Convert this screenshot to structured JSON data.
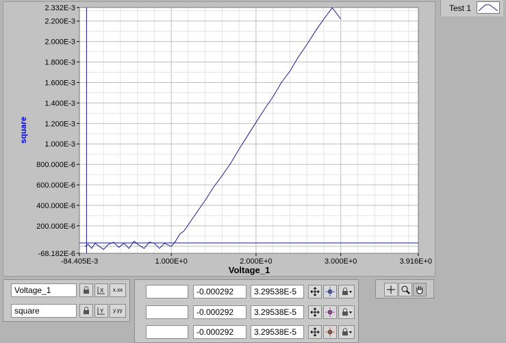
{
  "legend": {
    "plot_name": "Test 1"
  },
  "chart_data": {
    "type": "line",
    "title": "",
    "xlabel": "Voltage_1",
    "ylabel": "square",
    "xlim": [
      -0.084405,
      3.916
    ],
    "ylim": [
      -6.8182e-05,
      0.002332
    ],
    "x_tick_labels": [
      {
        "v": -0.084405,
        "label": "-84.405E-3"
      },
      {
        "v": 1.0,
        "label": "1.000E+0"
      },
      {
        "v": 2.0,
        "label": "2.000E+0"
      },
      {
        "v": 3.0,
        "label": "3.000E+0"
      },
      {
        "v": 3.916,
        "label": "3.916E+0"
      }
    ],
    "y_tick_labels": [
      {
        "v": -6.8182e-05,
        "label": "-68.182E-6"
      },
      {
        "v": 0.0002,
        "label": "200.000E-6"
      },
      {
        "v": 0.0004,
        "label": "400.000E-6"
      },
      {
        "v": 0.0006,
        "label": "600.000E-6"
      },
      {
        "v": 0.0008,
        "label": "800.000E-6"
      },
      {
        "v": 0.001,
        "label": "1.000E-3"
      },
      {
        "v": 0.0012,
        "label": "1.200E-3"
      },
      {
        "v": 0.0014,
        "label": "1.400E-3"
      },
      {
        "v": 0.0016,
        "label": "1.600E-3"
      },
      {
        "v": 0.0018,
        "label": "1.800E-3"
      },
      {
        "v": 0.002,
        "label": "2.000E-3"
      },
      {
        "v": 0.0022,
        "label": "2.200E-3"
      },
      {
        "v": 0.002332,
        "label": "2.332E-3"
      }
    ],
    "grid": true,
    "series": [
      {
        "name": "Test 1",
        "color": "#1a1a8c",
        "x": [
          -0.02,
          0.02,
          0.06,
          0.1,
          0.15,
          0.2,
          0.26,
          0.32,
          0.38,
          0.44,
          0.5,
          0.56,
          0.62,
          0.68,
          0.74,
          0.8,
          0.86,
          0.92,
          0.97,
          1.0,
          1.05,
          1.1,
          1.15,
          1.2,
          1.3,
          1.4,
          1.5,
          1.6,
          1.7,
          1.8,
          1.9,
          2.0,
          2.1,
          2.2,
          2.3,
          2.4,
          2.5,
          2.6,
          2.7,
          2.8,
          2.9,
          3.0
        ],
        "y": [
          0.0,
          2e-05,
          -2e-05,
          3e-05,
          0.0,
          -3e-05,
          2e-05,
          4e-05,
          -1e-05,
          3e-05,
          -2e-05,
          5e-05,
          1e-05,
          -2e-05,
          4e-05,
          3e-05,
          -2e-05,
          3e-05,
          1e-05,
          0.0,
          5e-05,
          0.00012,
          0.00015,
          0.00021,
          0.00033,
          0.00045,
          0.00058,
          0.00069,
          0.00081,
          0.00095,
          0.00108,
          0.00121,
          0.00134,
          0.00146,
          0.0016,
          0.00171,
          0.00185,
          0.00197,
          0.0021,
          0.00222,
          0.00233,
          0.00222
        ]
      }
    ],
    "cursor": {
      "x": -0.000292,
      "y": 3.29538e-05
    }
  },
  "scales": {
    "x": {
      "name": "Voltage_1"
    },
    "y": {
      "name": "square"
    }
  },
  "cursors": [
    {
      "name": "",
      "x": "-0.000292",
      "y": "3.29538E-5"
    },
    {
      "name": "",
      "x": "-0.000292",
      "y": "3.29538E-5"
    },
    {
      "name": "",
      "x": "-0.000292",
      "y": "3.29538E-5"
    }
  ],
  "scale_buttons": {
    "x_format": "x.xx",
    "y_format": "y.yy"
  },
  "colors": {
    "plot_bg": "#ffffff",
    "grid": "#c8c8c8",
    "trace": "#1a1a8c",
    "axis_label": "#0000ff"
  },
  "icons": [
    "lock-icon",
    "x-autoscale-icon",
    "y-autoscale-icon",
    "format-icon",
    "cursor-move-icon",
    "cursor-style-icon",
    "zoom-icon",
    "pan-hand-icon",
    "crosshair-icon"
  ]
}
